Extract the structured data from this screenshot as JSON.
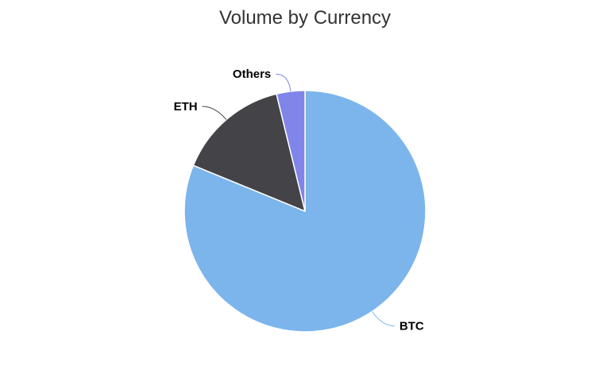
{
  "chart_data": {
    "type": "pie",
    "title": "Volume by Currency",
    "slices": [
      {
        "name": "BTC",
        "value": 81.2,
        "color": "#7cb5ec"
      },
      {
        "name": "ETH",
        "value": 15.0,
        "color": "#434348"
      },
      {
        "name": "Others",
        "value": 3.8,
        "color": "#8085e9"
      }
    ]
  }
}
